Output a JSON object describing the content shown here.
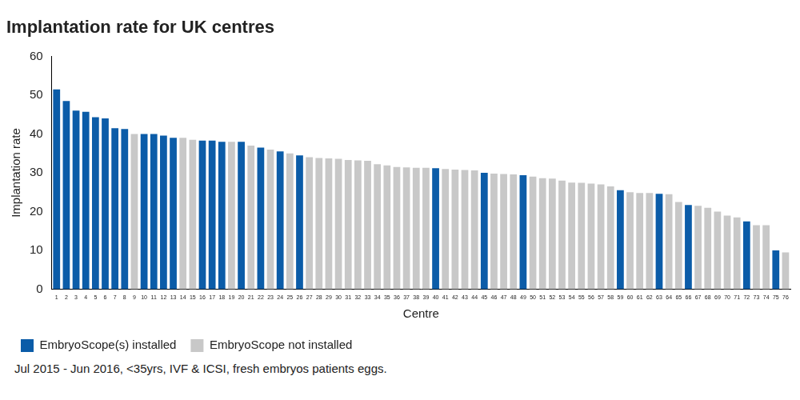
{
  "chart_data": {
    "type": "bar",
    "title": "Implantation rate for UK centres",
    "x_label": "Centre",
    "y_label": "Implantation rate",
    "footnote": "Jul 2015 - Jun 2016, <35yrs, IVF & ICSI, fresh embryos patients eggs.",
    "categories": [
      "1",
      "2",
      "3",
      "4",
      "5",
      "6",
      "7",
      "8",
      "9",
      "10",
      "11",
      "12",
      "13",
      "14",
      "15",
      "16",
      "17",
      "18",
      "19",
      "20",
      "21",
      "22",
      "23",
      "24",
      "25",
      "26",
      "27",
      "28",
      "29",
      "30",
      "31",
      "32",
      "33",
      "34",
      "35",
      "36",
      "37",
      "38",
      "39",
      "40",
      "41",
      "42",
      "43",
      "44",
      "45",
      "46",
      "47",
      "48",
      "49",
      "50",
      "51",
      "52",
      "53",
      "54",
      "55",
      "56",
      "57",
      "58",
      "59",
      "60",
      "61",
      "62",
      "63",
      "64",
      "65",
      "66",
      "67",
      "68",
      "69",
      "70",
      "71",
      "72",
      "73",
      "74",
      "75",
      "76"
    ],
    "series": [
      {
        "name": "EmbryoScope(s) installed",
        "color": "#0b5ca8",
        "values": [
          51.5,
          48.5,
          46,
          45.7,
          44.3,
          44,
          41.5,
          41.3,
          null,
          40,
          40,
          39.6,
          39,
          null,
          null,
          38.3,
          38.3,
          38,
          null,
          38,
          null,
          36.5,
          null,
          35.5,
          null,
          34.5,
          null,
          null,
          null,
          null,
          null,
          null,
          null,
          null,
          null,
          null,
          null,
          null,
          null,
          31.2,
          null,
          null,
          null,
          null,
          30,
          null,
          null,
          null,
          29.4,
          null,
          null,
          null,
          null,
          null,
          null,
          null,
          null,
          null,
          25.5,
          null,
          null,
          null,
          24.6,
          null,
          null,
          21.7,
          null,
          null,
          null,
          null,
          null,
          17.5,
          null,
          null,
          10,
          null
        ]
      },
      {
        "name": "EmbryoScope not installed",
        "color": "#c8c8c8",
        "values": [
          null,
          null,
          null,
          null,
          null,
          null,
          null,
          null,
          40,
          null,
          null,
          null,
          null,
          39,
          38.5,
          null,
          null,
          null,
          38,
          null,
          37,
          null,
          36,
          null,
          35,
          null,
          34,
          33.8,
          33.7,
          33.6,
          33.3,
          33.2,
          33.1,
          32.2,
          31.9,
          31.5,
          31.4,
          31.3,
          31.3,
          null,
          31,
          30.8,
          30.7,
          30.6,
          null,
          29.8,
          29.7,
          29.6,
          null,
          29,
          28.6,
          28.5,
          28,
          27.5,
          27.4,
          27.2,
          27,
          26.5,
          null,
          25,
          24.8,
          24.8,
          null,
          24.5,
          22.5,
          null,
          21.5,
          21,
          20,
          19,
          18.5,
          null,
          16.5,
          16.5,
          null,
          9.5
        ]
      }
    ],
    "ylim": [
      0,
      60
    ],
    "yticks": [
      0,
      10,
      20,
      30,
      40,
      50,
      60
    ],
    "grid": false,
    "legend": "bottom"
  }
}
